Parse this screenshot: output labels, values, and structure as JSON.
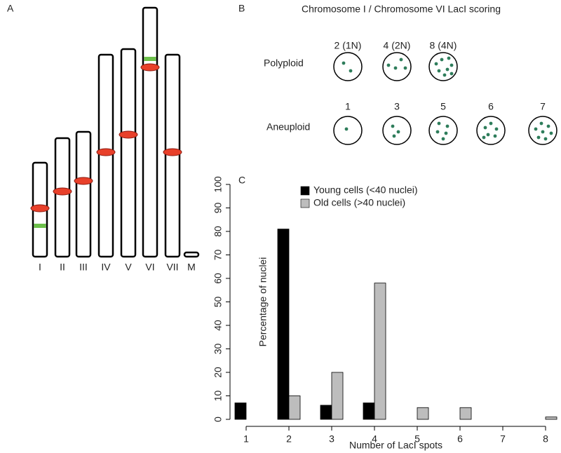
{
  "panel_a": {
    "label": "A",
    "chromosomes": [
      "I",
      "II",
      "III",
      "IV",
      "V",
      "VI",
      "VII",
      "M"
    ]
  },
  "panel_b": {
    "label": "B",
    "title": "Chromosome I / Chromosome VI LacI scoring",
    "rows": [
      {
        "label": "Polyploid",
        "cells": [
          "2 (1N)",
          "4 (2N)",
          "8 (4N)"
        ]
      },
      {
        "label": "Aneuploid",
        "cells": [
          "1",
          "3",
          "5",
          "6",
          "7"
        ]
      }
    ]
  },
  "panel_c": {
    "label": "C"
  },
  "chart_data": {
    "type": "bar",
    "categories": [
      "1",
      "2",
      "3",
      "4",
      "5",
      "6",
      "7",
      "8"
    ],
    "series": [
      {
        "name": "Young cells (<40 nuclei)",
        "color": "#000000",
        "values": [
          7,
          81,
          6,
          7,
          0,
          0,
          0,
          0
        ]
      },
      {
        "name": "Old cells (>40 nuclei)",
        "color": "#bdbdbd",
        "values": [
          0,
          10,
          20,
          58,
          5,
          5,
          0,
          1
        ]
      }
    ],
    "x_label": "Number of LacI spots",
    "y_label": "Percentage of nuclei",
    "ylim": [
      0,
      100
    ],
    "yticks": [
      0,
      10,
      20,
      30,
      40,
      50,
      60,
      70,
      80,
      90,
      100
    ],
    "legend": "top-left"
  }
}
